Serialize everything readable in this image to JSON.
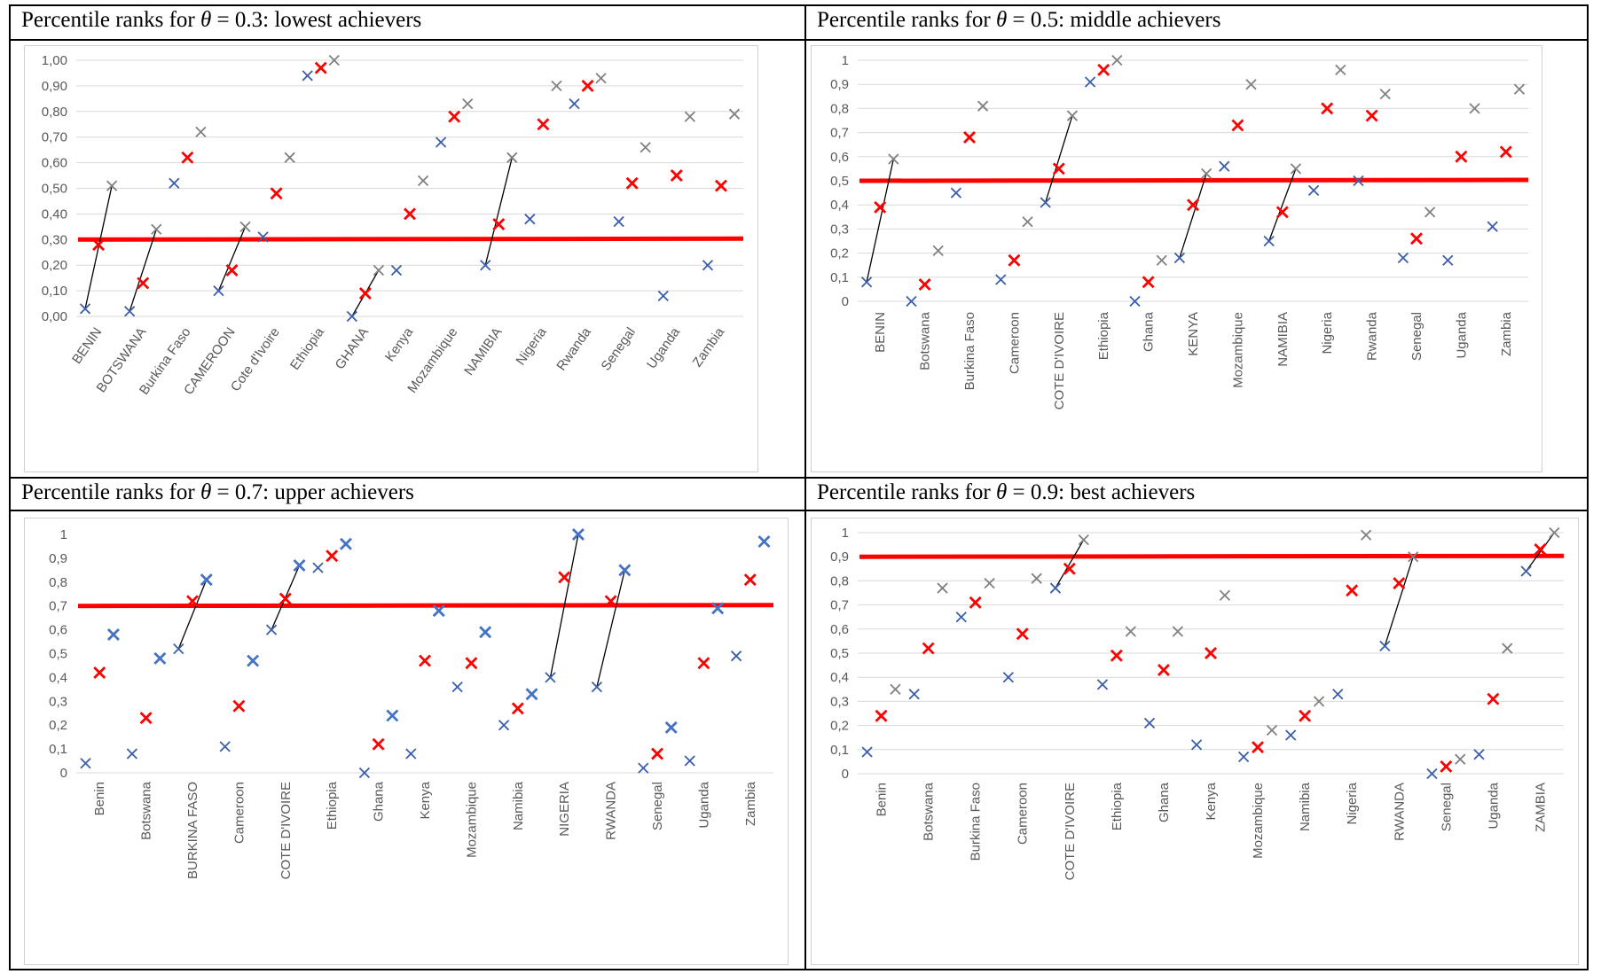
{
  "panels": [
    {
      "title_prefix": "Percentile ranks for ",
      "theta_symbol": "θ",
      "title_eq": " = 0.3",
      "title_suffix": ": lowest achievers",
      "chart_data": {
        "type": "scatter",
        "title": "",
        "xlabel": "",
        "ylabel": "",
        "ylim": [
          0,
          1
        ],
        "yticks": [
          "0,00",
          "0,10",
          "0,20",
          "0,30",
          "0,40",
          "0,50",
          "0,60",
          "0,70",
          "0,80",
          "0,90",
          "1,00"
        ],
        "grid": true,
        "categories": [
          "BENIN",
          "BOTSWANA",
          "Burkina Faso",
          "CAMEROON",
          "Cote d'Ivoire",
          "Ethiopia",
          "GHANA",
          "Kenya",
          "Mozambique",
          "NAMIBIA",
          "Nigeria",
          "Rwanda",
          "Senegal",
          "Uganda",
          "Zambia"
        ],
        "series": [
          {
            "color": "#3a5ea8",
            "values": [
              0.03,
              0.02,
              0.52,
              0.1,
              0.31,
              0.94,
              0.0,
              0.18,
              0.68,
              0.2,
              0.38,
              0.83,
              0.37,
              0.08,
              0.2
            ]
          },
          {
            "color": "#ff0000",
            "values": [
              0.28,
              0.13,
              0.62,
              0.18,
              0.48,
              0.97,
              0.09,
              0.4,
              0.78,
              0.36,
              0.75,
              0.9,
              0.52,
              0.55,
              0.51
            ]
          },
          {
            "color": "#808080",
            "values": [
              0.51,
              0.34,
              0.72,
              0.35,
              0.62,
              1.0,
              0.18,
              0.53,
              0.83,
              0.62,
              0.9,
              0.93,
              0.66,
              0.78,
              0.79
            ]
          }
        ],
        "threshold": 0.3,
        "connected": [
          "BENIN",
          "BOTSWANA",
          "CAMEROON",
          "GHANA",
          "NAMIBIA"
        ],
        "label_rotation": "diagonal"
      }
    },
    {
      "title_prefix": "Percentile ranks for ",
      "theta_symbol": "θ",
      "title_eq": " = 0.5",
      "title_suffix": ": middle achievers",
      "chart_data": {
        "type": "scatter",
        "title": "",
        "xlabel": "",
        "ylabel": "",
        "ylim": [
          0,
          1
        ],
        "yticks": [
          "0",
          "0,1",
          "0,2",
          "0,3",
          "0,4",
          "0,5",
          "0,6",
          "0,7",
          "0,8",
          "0,9",
          "1"
        ],
        "grid": true,
        "categories": [
          "BENIN",
          "Botswana",
          "Burkina Faso",
          "Cameroon",
          "COTE D'IVOIRE",
          "Ethiopia",
          "Ghana",
          "KENYA",
          "Mozambique",
          "NAMIBIA",
          "Nigeria",
          "Rwanda",
          "Senegal",
          "Uganda",
          "Zambia"
        ],
        "series": [
          {
            "color": "#3a5ea8",
            "values": [
              0.08,
              0.0,
              0.45,
              0.09,
              0.41,
              0.91,
              0.0,
              0.18,
              0.56,
              0.25,
              0.46,
              0.5,
              0.18,
              0.17,
              0.31
            ]
          },
          {
            "color": "#ff0000",
            "values": [
              0.39,
              0.07,
              0.68,
              0.17,
              0.55,
              0.96,
              0.08,
              0.4,
              0.73,
              0.37,
              0.8,
              0.77,
              0.26,
              0.6,
              0.62
            ]
          },
          {
            "color": "#808080",
            "values": [
              0.59,
              0.21,
              0.81,
              0.33,
              0.77,
              1.0,
              0.17,
              0.53,
              0.9,
              0.55,
              0.96,
              0.86,
              0.37,
              0.8,
              0.88
            ]
          }
        ],
        "threshold": 0.5,
        "connected": [
          "BENIN",
          "COTE D'IVOIRE",
          "KENYA",
          "NAMIBIA"
        ],
        "label_rotation": "vertical"
      }
    },
    {
      "title_prefix": "Percentile ranks for ",
      "theta_symbol": "θ",
      "title_eq": " = 0.7",
      "title_suffix": ": upper achievers",
      "chart_data": {
        "type": "scatter",
        "title": "",
        "xlabel": "",
        "ylabel": "",
        "ylim": [
          0,
          1
        ],
        "yticks": [
          "0",
          "0,1",
          "0,2",
          "0,3",
          "0,4",
          "0,5",
          "0,6",
          "0,7",
          "0,8",
          "0,9",
          "1"
        ],
        "grid": false,
        "categories": [
          "Benin",
          "Botswana",
          "BURKINA FASO",
          "Cameroon",
          "COTE D'IVOIRE",
          "Ethiopia",
          "Ghana",
          "Kenya",
          "Mozambique",
          "Namibia",
          "NIGERIA",
          "RWANDA",
          "Senegal",
          "Uganda",
          "Zambia"
        ],
        "series": [
          {
            "color": "#3a5ea8",
            "values": [
              0.04,
              0.08,
              0.52,
              0.11,
              0.6,
              0.86,
              0.0,
              0.08,
              0.36,
              0.2,
              0.4,
              0.36,
              0.02,
              0.05,
              0.49
            ]
          },
          {
            "color": "#ff0000",
            "values": [
              0.42,
              0.23,
              0.72,
              0.28,
              0.73,
              0.91,
              0.12,
              0.47,
              0.46,
              0.27,
              0.82,
              0.72,
              0.08,
              0.46,
              0.81
            ]
          },
          {
            "color": "#4472c4",
            "values": [
              0.58,
              0.48,
              0.81,
              0.47,
              0.87,
              0.96,
              0.24,
              0.68,
              0.59,
              0.33,
              1.0,
              0.85,
              0.19,
              0.69,
              0.97
            ]
          }
        ],
        "threshold": 0.7,
        "connected": [
          "BURKINA FASO",
          "COTE D'IVOIRE",
          "NIGERIA",
          "RWANDA"
        ],
        "label_rotation": "vertical"
      }
    },
    {
      "title_prefix": "Percentile ranks for ",
      "theta_symbol": "θ",
      "title_eq": " = 0.9",
      "title_suffix": ": best achievers",
      "chart_data": {
        "type": "scatter",
        "title": "",
        "xlabel": "",
        "ylabel": "",
        "ylim": [
          0,
          1
        ],
        "yticks": [
          "0",
          "0,1",
          "0,2",
          "0,3",
          "0,4",
          "0,5",
          "0,6",
          "0,7",
          "0,8",
          "0,9",
          "1"
        ],
        "grid": true,
        "categories": [
          "Benin",
          "Botswana",
          "Burkina Faso",
          "Cameroon",
          "COTE D'IVOIRE",
          "Ethiopia",
          "Ghana",
          "Kenya",
          "Mozambique",
          "Namibia",
          "Nigeria",
          "RWANDA",
          "Senegal",
          "Uganda",
          "ZAMBIA"
        ],
        "series": [
          {
            "color": "#3a5ea8",
            "values": [
              0.09,
              0.33,
              0.65,
              0.4,
              0.77,
              0.37,
              0.21,
              0.12,
              0.07,
              0.16,
              0.33,
              0.53,
              0.0,
              0.08,
              0.84
            ]
          },
          {
            "color": "#ff0000",
            "values": [
              0.24,
              0.52,
              0.71,
              0.58,
              0.85,
              0.49,
              0.43,
              0.5,
              0.11,
              0.24,
              0.76,
              0.79,
              0.03,
              0.31,
              0.93
            ]
          },
          {
            "color": "#808080",
            "values": [
              0.35,
              0.77,
              0.79,
              0.81,
              0.97,
              0.59,
              0.59,
              0.74,
              0.18,
              0.3,
              0.99,
              0.9,
              0.06,
              0.52,
              1.0
            ]
          }
        ],
        "threshold": 0.9,
        "connected": [
          "COTE D'IVOIRE",
          "RWANDA",
          "ZAMBIA"
        ],
        "label_rotation": "vertical"
      }
    }
  ]
}
